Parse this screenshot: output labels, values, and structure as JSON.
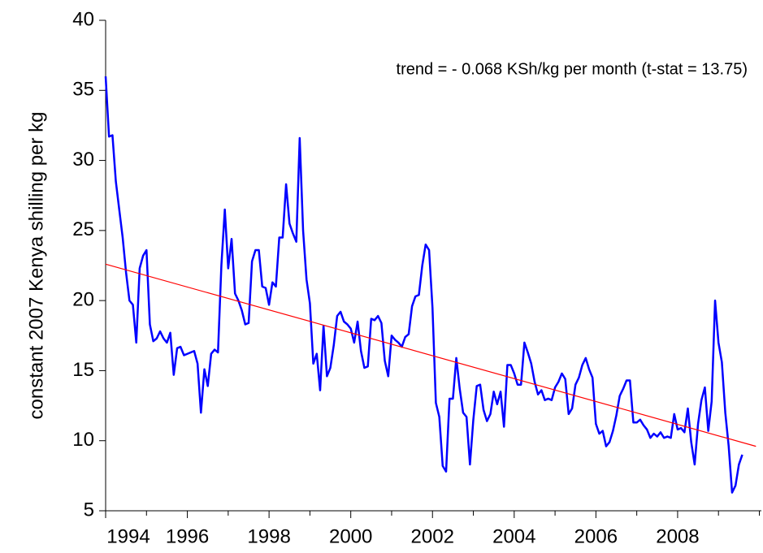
{
  "chart_data": {
    "type": "line",
    "y_label": "constant 2007 Kenya shilling per kg",
    "annotation": "trend = - 0.068 KSh/kg per month (t-stat = 13.75)",
    "xlim": [
      1994,
      2010.05
    ],
    "xticks": [
      1994,
      1996,
      1998,
      2000,
      2002,
      2004,
      2006,
      2008
    ],
    "xminorticks": [
      1995,
      1997,
      1999,
      2001,
      2003,
      2005,
      2007,
      2009,
      2010
    ],
    "ylim": [
      5,
      40
    ],
    "yticks": [
      5,
      10,
      15,
      20,
      25,
      30,
      35,
      40
    ],
    "series": [
      {
        "color": "#0000ff",
        "x": [
          1994,
          1994.083,
          1994.167,
          1994.25,
          1994.333,
          1994.417,
          1994.5,
          1994.583,
          1994.667,
          1994.75,
          1994.833,
          1994.917,
          1995,
          1995.083,
          1995.167,
          1995.25,
          1995.333,
          1995.417,
          1995.5,
          1995.583,
          1995.667,
          1995.75,
          1995.833,
          1995.917,
          1996,
          1996.083,
          1996.167,
          1996.25,
          1996.333,
          1996.417,
          1996.5,
          1996.583,
          1996.667,
          1996.75,
          1996.833,
          1996.917,
          1997,
          1997.083,
          1997.167,
          1997.25,
          1997.333,
          1997.417,
          1997.5,
          1997.583,
          1997.667,
          1997.75,
          1997.833,
          1997.917,
          1998,
          1998.083,
          1998.167,
          1998.25,
          1998.333,
          1998.417,
          1998.5,
          1998.583,
          1998.667,
          1998.75,
          1998.833,
          1998.917,
          1999,
          1999.083,
          1999.167,
          1999.25,
          1999.333,
          1999.417,
          1999.5,
          1999.583,
          1999.667,
          1999.75,
          1999.833,
          1999.917,
          2000,
          2000.083,
          2000.167,
          2000.25,
          2000.333,
          2000.417,
          2000.5,
          2000.583,
          2000.667,
          2000.75,
          2000.833,
          2000.917,
          2001,
          2001.083,
          2001.167,
          2001.25,
          2001.333,
          2001.417,
          2001.5,
          2001.583,
          2001.667,
          2001.75,
          2001.833,
          2001.917,
          2002,
          2002.083,
          2002.167,
          2002.25,
          2002.333,
          2002.417,
          2002.5,
          2002.583,
          2002.667,
          2002.75,
          2002.833,
          2002.917,
          2003,
          2003.083,
          2003.167,
          2003.25,
          2003.333,
          2003.417,
          2003.5,
          2003.583,
          2003.667,
          2003.75,
          2003.833,
          2003.917,
          2004,
          2004.083,
          2004.167,
          2004.25,
          2004.333,
          2004.417,
          2004.5,
          2004.583,
          2004.667,
          2004.75,
          2004.833,
          2004.917,
          2005,
          2005.083,
          2005.167,
          2005.25,
          2005.333,
          2005.417,
          2005.5,
          2005.583,
          2005.667,
          2005.75,
          2005.833,
          2005.917,
          2006,
          2006.083,
          2006.167,
          2006.25,
          2006.333,
          2006.417,
          2006.5,
          2006.583,
          2006.667,
          2006.75,
          2006.833,
          2006.917,
          2007,
          2007.083,
          2007.167,
          2007.25,
          2007.333,
          2007.417,
          2007.5,
          2007.583,
          2007.667,
          2007.75,
          2007.833,
          2007.917,
          2008,
          2008.083,
          2008.167,
          2008.25,
          2008.333,
          2008.417,
          2008.5,
          2008.583,
          2008.667,
          2008.75,
          2008.833,
          2008.917,
          2009,
          2009.083,
          2009.167,
          2009.25,
          2009.333,
          2009.417,
          2009.5,
          2009.583
        ],
        "values": [
          36.0,
          31.7,
          31.8,
          28.5,
          26.5,
          24.5,
          22.0,
          20.0,
          19.7,
          17.0,
          22.3,
          23.2,
          23.6,
          18.3,
          17.1,
          17.3,
          17.8,
          17.3,
          17.0,
          17.7,
          14.7,
          16.6,
          16.7,
          16.1,
          16.2,
          16.3,
          16.4,
          15.5,
          12.0,
          15.1,
          13.9,
          16.2,
          16.5,
          16.3,
          22.5,
          26.5,
          22.3,
          24.4,
          20.5,
          20.0,
          19.3,
          18.3,
          18.4,
          22.8,
          23.6,
          23.6,
          21.0,
          20.9,
          19.7,
          21.3,
          21.0,
          24.5,
          24.5,
          28.3,
          25.5,
          24.8,
          24.2,
          31.6,
          25.0,
          21.5,
          19.8,
          15.5,
          16.2,
          13.6,
          18.2,
          14.6,
          15.2,
          16.8,
          18.9,
          19.2,
          18.5,
          18.3,
          18.0,
          17.0,
          18.5,
          16.4,
          15.2,
          15.3,
          18.7,
          18.6,
          18.9,
          18.4,
          15.7,
          14.6,
          17.5,
          17.2,
          17.0,
          16.7,
          17.4,
          17.6,
          19.6,
          20.3,
          20.4,
          22.5,
          24.0,
          23.6,
          19.5,
          12.7,
          11.7,
          8.2,
          7.8,
          13.0,
          13.0,
          15.9,
          13.7,
          12.0,
          11.7,
          8.3,
          11.5,
          13.9,
          14.0,
          12.2,
          11.4,
          11.9,
          13.5,
          12.6,
          13.5,
          11.0,
          15.4,
          15.4,
          14.8,
          14.0,
          14.0,
          17.0,
          16.3,
          15.5,
          14.2,
          13.3,
          13.6,
          12.9,
          13.0,
          12.9,
          13.8,
          14.2,
          14.8,
          14.4,
          11.9,
          12.3,
          14.0,
          14.5,
          15.4,
          15.9,
          15.1,
          14.5,
          11.2,
          10.5,
          10.7,
          9.6,
          9.9,
          10.7,
          11.8,
          13.2,
          13.7,
          14.3,
          14.3,
          11.3,
          11.3,
          11.5,
          11.1,
          10.8,
          10.2,
          10.5,
          10.3,
          10.6,
          10.2,
          10.3,
          10.2,
          11.9,
          10.8,
          10.9,
          10.6,
          12.3,
          9.9,
          8.3,
          11.2,
          12.9,
          13.8,
          10.7,
          12.8,
          20.0,
          17.0,
          15.6,
          12.0,
          9.6,
          6.3,
          6.8,
          8.3,
          9.0
        ]
      },
      {
        "color": "#ff0000",
        "x": [
          1994,
          2009.917
        ],
        "values": [
          22.6,
          9.6
        ]
      }
    ]
  }
}
